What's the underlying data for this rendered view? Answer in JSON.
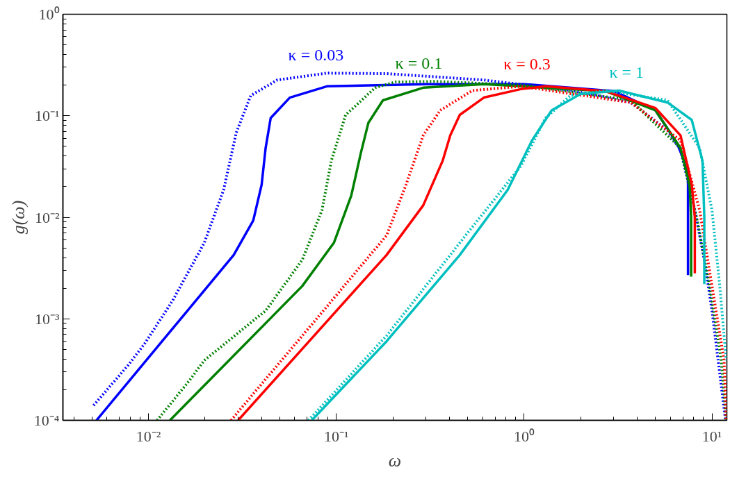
{
  "chart_data": {
    "type": "line",
    "xlabel": "ω",
    "ylabel": "g(ω)",
    "log": "xy",
    "grid": false,
    "xlim": [
      0.0035,
      12
    ],
    "ylim": [
      0.0001,
      1
    ],
    "xticks": [
      {
        "value": 0.01,
        "label": "10⁻²"
      },
      {
        "value": 0.1,
        "label": "10⁻¹"
      },
      {
        "value": 1,
        "label": "10⁰"
      },
      {
        "value": 10,
        "label": "10¹"
      }
    ],
    "yticks": [
      {
        "value": 0.0001,
        "label": "10⁻⁴"
      },
      {
        "value": 0.001,
        "label": "10⁻³"
      },
      {
        "value": 0.01,
        "label": "10⁻²"
      },
      {
        "value": 0.1,
        "label": "10⁻¹"
      },
      {
        "value": 1,
        "label": "10⁰"
      }
    ],
    "annotations": [
      "κ = 0.03",
      "κ = 0.1",
      "κ = 0.3",
      "κ = 1"
    ],
    "series": [
      {
        "color": "#0000ff",
        "line_style": "solid",
        "x": [
          0.00528,
          0.0284,
          0.0361,
          0.04,
          0.042,
          0.0447,
          0.0565,
          0.089,
          0.3,
          1,
          3,
          5,
          6.5,
          7.45,
          7.45
        ],
        "values": [
          0.0001,
          0.00425,
          0.0093,
          0.0209,
          0.048,
          0.095,
          0.151,
          0.195,
          0.205,
          0.205,
          0.175,
          0.113,
          0.054,
          0.029,
          0.0027
        ]
      },
      {
        "color": "#0000ff",
        "line_style": "dotted",
        "x": [
          0.0051,
          0.0078,
          0.0096,
          0.0134,
          0.0198,
          0.0251,
          0.0293,
          0.035,
          0.0485,
          0.089,
          0.185,
          0.61,
          1.8,
          3.7,
          5.8,
          6.8,
          8.1,
          9.1,
          10,
          11.2,
          11.8
        ],
        "values": [
          0.00014,
          0.00035,
          0.00058,
          0.0015,
          0.0056,
          0.0186,
          0.068,
          0.158,
          0.225,
          0.263,
          0.26,
          0.225,
          0.177,
          0.135,
          0.072,
          0.046,
          0.0117,
          0.0038,
          0.0012,
          0.00022,
          0.0001
        ]
      },
      {
        "color": "#008000",
        "line_style": "solid",
        "x": [
          0.013,
          0.0658,
          0.097,
          0.12,
          0.135,
          0.148,
          0.177,
          0.29,
          0.61,
          2.7,
          5.0,
          6.8,
          7.6,
          7.74,
          7.74
        ],
        "values": [
          0.0001,
          0.0021,
          0.0056,
          0.0163,
          0.043,
          0.085,
          0.142,
          0.189,
          0.205,
          0.175,
          0.113,
          0.048,
          0.021,
          0.01,
          0.0026
        ]
      },
      {
        "color": "#008000",
        "line_style": "dotted",
        "x": [
          0.0111,
          0.0166,
          0.0198,
          0.0267,
          0.042,
          0.0658,
          0.0838,
          0.094,
          0.112,
          0.161,
          0.206,
          0.336,
          1,
          3.7,
          6.8,
          8.4,
          9.7,
          11.2,
          11.9
        ],
        "values": [
          0.0001,
          0.00025,
          0.00039,
          0.00061,
          0.0012,
          0.0038,
          0.0117,
          0.036,
          0.102,
          0.189,
          0.215,
          0.218,
          0.2,
          0.142,
          0.048,
          0.0088,
          0.0021,
          0.00039,
          0.0001
        ]
      },
      {
        "color": "#ff0000",
        "line_style": "solid",
        "x": [
          0.03,
          0.185,
          0.29,
          0.368,
          0.404,
          0.454,
          0.61,
          0.96,
          1.3,
          2.7,
          5.0,
          6.8,
          7.8,
          8.1,
          8.1
        ],
        "values": [
          0.0001,
          0.00425,
          0.0131,
          0.036,
          0.064,
          0.102,
          0.151,
          0.183,
          0.195,
          0.175,
          0.119,
          0.064,
          0.021,
          0.01,
          0.0028
        ]
      },
      {
        "color": "#ff0000",
        "line_style": "dotted",
        "x": [
          0.0275,
          0.185,
          0.235,
          0.29,
          0.357,
          0.53,
          0.96,
          3.7,
          6.8,
          8.6,
          10,
          11.6,
          11.9
        ],
        "values": [
          0.0001,
          0.0066,
          0.021,
          0.064,
          0.113,
          0.177,
          0.195,
          0.135,
          0.057,
          0.0117,
          0.0021,
          0.00039,
          0.0001
        ]
      },
      {
        "color": "#00bfbf",
        "line_style": "solid",
        "x": [
          0.074,
          0.185,
          0.454,
          0.817,
          1.1,
          1.4,
          2.0,
          3.2,
          5.8,
          7.8,
          8.9,
          9.1,
          9.1
        ],
        "values": [
          0.0001,
          0.0006,
          0.00425,
          0.0186,
          0.057,
          0.113,
          0.164,
          0.177,
          0.135,
          0.091,
          0.036,
          0.01,
          0.0022
        ]
      },
      {
        "color": "#00bfbf",
        "line_style": "dotted",
        "x": [
          0.071,
          0.185,
          0.454,
          0.96,
          1.3,
          1.76,
          2.7,
          5.8,
          8.6,
          10,
          11,
          11.9
        ],
        "values": [
          0.0001,
          0.00068,
          0.0056,
          0.032,
          0.095,
          0.158,
          0.177,
          0.142,
          0.048,
          0.0117,
          0.0021,
          0.00039
        ]
      }
    ]
  }
}
